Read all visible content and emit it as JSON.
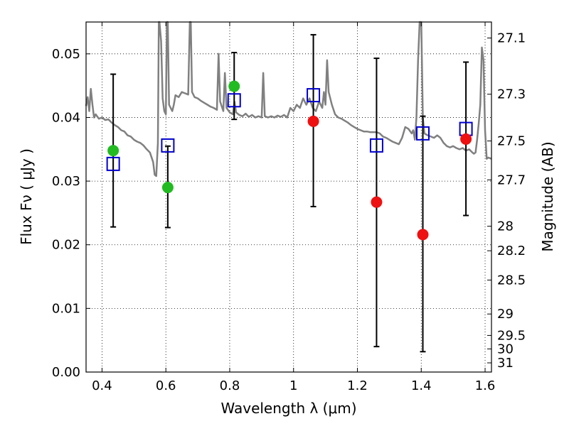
{
  "chart_data": {
    "type": "scatter",
    "xlabel": "Wavelength  λ (μm)",
    "ylabel": "Flux  Fν  ( μJy )",
    "ylabel_right": "Magnitude (AB)",
    "xlim": [
      0.35,
      1.62
    ],
    "ylim": [
      0.0,
      0.055
    ],
    "x_ticks": [
      0.4,
      0.6,
      0.8,
      1.0,
      1.2,
      1.4,
      1.6
    ],
    "x_tick_labels": [
      "0.4",
      "0.6",
      "0.8",
      "1",
      "1.2",
      "1.4",
      "1.6"
    ],
    "y_ticks": [
      0.0,
      0.01,
      0.02,
      0.03,
      0.04,
      0.05
    ],
    "y_tick_labels": [
      "0.00",
      "0.01",
      "0.02",
      "0.03",
      "0.04",
      "0.05"
    ],
    "right_ticks": [
      {
        "label": "27.1",
        "mag": 27.1
      },
      {
        "label": "27.3",
        "mag": 27.3
      },
      {
        "label": "27.5",
        "mag": 27.5
      },
      {
        "label": "27.7",
        "mag": 27.7
      },
      {
        "label": "28",
        "mag": 28.0
      },
      {
        "label": "28.2",
        "mag": 28.2
      },
      {
        "label": "28.5",
        "mag": 28.5
      },
      {
        "label": "29",
        "mag": 29.0
      },
      {
        "label": "29.5",
        "mag": 29.5
      },
      {
        "label": "30",
        "mag": 30.0
      },
      {
        "label": "31",
        "mag": 31.0
      }
    ],
    "grid": true,
    "grid_style": "dotted",
    "series": [
      {
        "kind": "errorbars",
        "color": "#000000",
        "points": [
          {
            "x": 0.435,
            "low": 0.0228,
            "high": 0.0468
          },
          {
            "x": 0.606,
            "low": 0.0227,
            "high": 0.0355
          },
          {
            "x": 0.814,
            "low": 0.0397,
            "high": 0.0502
          },
          {
            "x": 1.062,
            "low": 0.026,
            "high": 0.053
          },
          {
            "x": 1.26,
            "low": 0.004,
            "high": 0.0493
          },
          {
            "x": 1.405,
            "low": 0.0032,
            "high": 0.0402
          },
          {
            "x": 1.54,
            "low": 0.0246,
            "high": 0.0487
          }
        ]
      },
      {
        "kind": "open-squares",
        "color": "#0000cc",
        "points": [
          {
            "x": 0.435,
            "y": 0.0327
          },
          {
            "x": 0.606,
            "y": 0.0356
          },
          {
            "x": 0.814,
            "y": 0.0427
          },
          {
            "x": 1.062,
            "y": 0.0435
          },
          {
            "x": 1.26,
            "y": 0.0356
          },
          {
            "x": 1.405,
            "y": 0.0375
          },
          {
            "x": 1.54,
            "y": 0.0382
          }
        ]
      },
      {
        "kind": "filled-circles",
        "color": "#22bb22",
        "points": [
          {
            "x": 0.435,
            "y": 0.0348
          },
          {
            "x": 0.606,
            "y": 0.029
          },
          {
            "x": 0.814,
            "y": 0.0449
          }
        ]
      },
      {
        "kind": "filled-circles",
        "color": "#ee1111",
        "points": [
          {
            "x": 1.062,
            "y": 0.0394
          },
          {
            "x": 1.26,
            "y": 0.0267
          },
          {
            "x": 1.405,
            "y": 0.0216
          },
          {
            "x": 1.54,
            "y": 0.0366
          }
        ]
      },
      {
        "kind": "spectrum-line",
        "color": "#808080",
        "points": [
          [
            0.35,
            0.0418
          ],
          [
            0.355,
            0.0432
          ],
          [
            0.36,
            0.041
          ],
          [
            0.365,
            0.0445
          ],
          [
            0.37,
            0.042
          ],
          [
            0.375,
            0.04
          ],
          [
            0.38,
            0.0405
          ],
          [
            0.39,
            0.0398
          ],
          [
            0.4,
            0.04
          ],
          [
            0.41,
            0.0396
          ],
          [
            0.42,
            0.0397
          ],
          [
            0.43,
            0.0392
          ],
          [
            0.44,
            0.0388
          ],
          [
            0.45,
            0.0385
          ],
          [
            0.46,
            0.038
          ],
          [
            0.47,
            0.0378
          ],
          [
            0.48,
            0.0372
          ],
          [
            0.49,
            0.037
          ],
          [
            0.5,
            0.0365
          ],
          [
            0.51,
            0.0362
          ],
          [
            0.52,
            0.036
          ],
          [
            0.53,
            0.0356
          ],
          [
            0.54,
            0.035
          ],
          [
            0.55,
            0.0345
          ],
          [
            0.56,
            0.033
          ],
          [
            0.565,
            0.031
          ],
          [
            0.57,
            0.0308
          ],
          [
            0.575,
            0.036
          ],
          [
            0.578,
            0.055
          ],
          [
            0.58,
            0.055
          ],
          [
            0.585,
            0.052
          ],
          [
            0.59,
            0.043
          ],
          [
            0.595,
            0.041
          ],
          [
            0.6,
            0.0405
          ],
          [
            0.603,
            0.055
          ],
          [
            0.606,
            0.055
          ],
          [
            0.61,
            0.042
          ],
          [
            0.62,
            0.041
          ],
          [
            0.625,
            0.042
          ],
          [
            0.63,
            0.0435
          ],
          [
            0.64,
            0.0432
          ],
          [
            0.65,
            0.044
          ],
          [
            0.66,
            0.0438
          ],
          [
            0.67,
            0.0436
          ],
          [
            0.675,
            0.055
          ],
          [
            0.678,
            0.055
          ],
          [
            0.682,
            0.044
          ],
          [
            0.69,
            0.0432
          ],
          [
            0.7,
            0.043
          ],
          [
            0.71,
            0.0426
          ],
          [
            0.72,
            0.0423
          ],
          [
            0.73,
            0.042
          ],
          [
            0.74,
            0.0417
          ],
          [
            0.75,
            0.0415
          ],
          [
            0.76,
            0.0412
          ],
          [
            0.765,
            0.05
          ],
          [
            0.77,
            0.0425
          ],
          [
            0.78,
            0.041
          ],
          [
            0.785,
            0.047
          ],
          [
            0.79,
            0.0415
          ],
          [
            0.8,
            0.0408
          ],
          [
            0.81,
            0.0405
          ],
          [
            0.815,
            0.0425
          ],
          [
            0.82,
            0.0408
          ],
          [
            0.83,
            0.0404
          ],
          [
            0.84,
            0.0402
          ],
          [
            0.85,
            0.0406
          ],
          [
            0.86,
            0.0401
          ],
          [
            0.87,
            0.0404
          ],
          [
            0.88,
            0.04
          ],
          [
            0.89,
            0.0402
          ],
          [
            0.9,
            0.04
          ],
          [
            0.905,
            0.047
          ],
          [
            0.91,
            0.0402
          ],
          [
            0.92,
            0.04
          ],
          [
            0.93,
            0.0402
          ],
          [
            0.94,
            0.04
          ],
          [
            0.95,
            0.0403
          ],
          [
            0.96,
            0.0401
          ],
          [
            0.97,
            0.0404
          ],
          [
            0.98,
            0.04
          ],
          [
            0.99,
            0.0415
          ],
          [
            1.0,
            0.041
          ],
          [
            1.01,
            0.042
          ],
          [
            1.02,
            0.0415
          ],
          [
            1.03,
            0.043
          ],
          [
            1.04,
            0.042
          ],
          [
            1.05,
            0.043
          ],
          [
            1.06,
            0.0415
          ],
          [
            1.07,
            0.041
          ],
          [
            1.08,
            0.0425
          ],
          [
            1.085,
            0.042
          ],
          [
            1.09,
            0.0415
          ],
          [
            1.095,
            0.044
          ],
          [
            1.1,
            0.042
          ],
          [
            1.105,
            0.049
          ],
          [
            1.11,
            0.044
          ],
          [
            1.12,
            0.042
          ],
          [
            1.13,
            0.0405
          ],
          [
            1.14,
            0.04
          ],
          [
            1.15,
            0.0398
          ],
          [
            1.16,
            0.0395
          ],
          [
            1.17,
            0.0392
          ],
          [
            1.18,
            0.0388
          ],
          [
            1.19,
            0.0385
          ],
          [
            1.2,
            0.0382
          ],
          [
            1.21,
            0.038
          ],
          [
            1.22,
            0.0378
          ],
          [
            1.23,
            0.0378
          ],
          [
            1.24,
            0.0377
          ],
          [
            1.25,
            0.0377
          ],
          [
            1.26,
            0.0377
          ],
          [
            1.27,
            0.0375
          ],
          [
            1.28,
            0.037
          ],
          [
            1.29,
            0.0368
          ],
          [
            1.3,
            0.0365
          ],
          [
            1.31,
            0.0362
          ],
          [
            1.32,
            0.036
          ],
          [
            1.33,
            0.0358
          ],
          [
            1.34,
            0.0368
          ],
          [
            1.35,
            0.0385
          ],
          [
            1.36,
            0.0382
          ],
          [
            1.37,
            0.0375
          ],
          [
            1.375,
            0.038
          ],
          [
            1.38,
            0.0365
          ],
          [
            1.385,
            0.04
          ],
          [
            1.39,
            0.049
          ],
          [
            1.395,
            0.055
          ],
          [
            1.4,
            0.055
          ],
          [
            1.405,
            0.04
          ],
          [
            1.41,
            0.0375
          ],
          [
            1.42,
            0.0372
          ],
          [
            1.43,
            0.037
          ],
          [
            1.44,
            0.0368
          ],
          [
            1.45,
            0.0372
          ],
          [
            1.46,
            0.0368
          ],
          [
            1.47,
            0.036
          ],
          [
            1.48,
            0.0355
          ],
          [
            1.49,
            0.0353
          ],
          [
            1.5,
            0.0355
          ],
          [
            1.51,
            0.0352
          ],
          [
            1.52,
            0.035
          ],
          [
            1.53,
            0.0352
          ],
          [
            1.54,
            0.0348
          ],
          [
            1.55,
            0.035
          ],
          [
            1.56,
            0.0345
          ],
          [
            1.565,
            0.0343
          ],
          [
            1.57,
            0.0345
          ],
          [
            1.575,
            0.0365
          ],
          [
            1.58,
            0.039
          ],
          [
            1.585,
            0.042
          ],
          [
            1.59,
            0.051
          ],
          [
            1.595,
            0.049
          ],
          [
            1.6,
            0.038
          ],
          [
            1.605,
            0.0335
          ],
          [
            1.61,
            0.0337
          ],
          [
            1.62,
            0.0335
          ]
        ]
      }
    ]
  }
}
